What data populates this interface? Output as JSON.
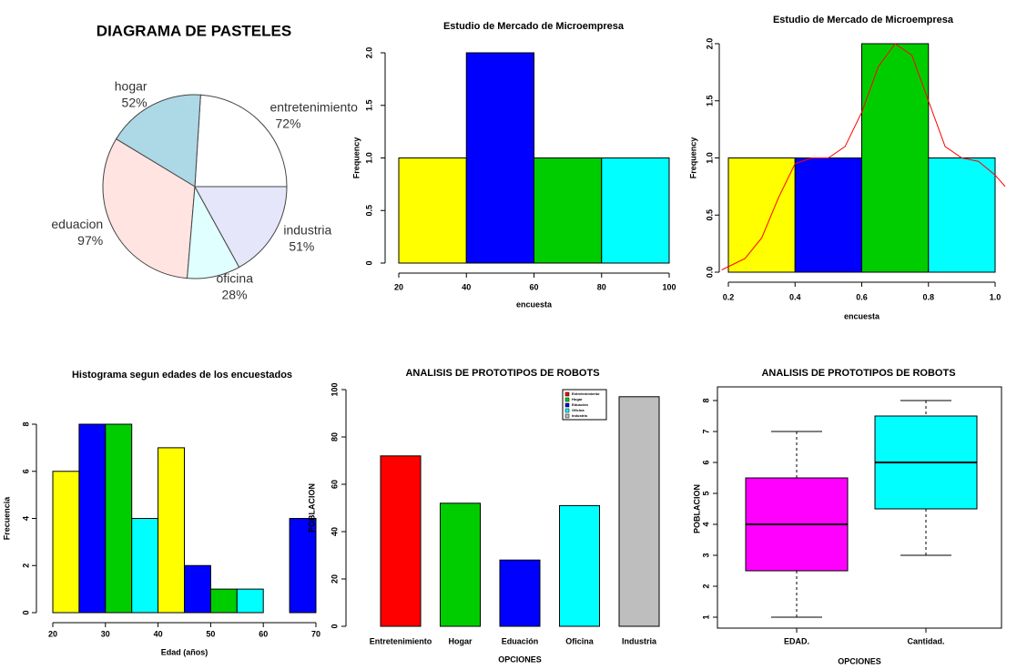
{
  "chart_data": [
    {
      "type": "pie",
      "title": "DIAGRAMA DE PASTELES",
      "categories": [
        "entretenimiento",
        "hogar",
        "eduacion",
        "oficina",
        "industria"
      ],
      "values": [
        72,
        52,
        97,
        28,
        51
      ],
      "value_labels": [
        "72%",
        "52%",
        "97%",
        "28%",
        "51%"
      ],
      "colors": [
        "#ffffff",
        "#add8e6",
        "#ffe4e1",
        "#e0ffff",
        "#e6e6fa"
      ]
    },
    {
      "type": "histogram",
      "title": "Estudio de Mercado de Microempresa",
      "xlabel": "encuesta",
      "ylabel": "Frequency",
      "bins": [
        20,
        40,
        60,
        80,
        100
      ],
      "values": [
        1,
        2,
        1,
        1
      ],
      "colors": [
        "#ffff00",
        "#0000ff",
        "#00cd00",
        "#00ffff"
      ],
      "xlim": [
        20,
        100
      ],
      "xticks": [
        20,
        40,
        60,
        80,
        100
      ],
      "ylim": [
        0,
        2
      ],
      "yticks": [
        0,
        0.5,
        {
          "value": 1,
          "label": "1.0"
        },
        1.5,
        {
          "value": 2,
          "label": "2.0"
        }
      ]
    },
    {
      "type": "histogram",
      "title": "Estudio de Mercado de Microempresa",
      "xlabel": "encuesta",
      "ylabel": "Frequency",
      "bins": [
        0.2,
        0.4,
        0.6,
        0.8,
        1.0
      ],
      "values": [
        1,
        1,
        2,
        1
      ],
      "colors": [
        "#ffff00",
        "#0000ff",
        "#00cd00",
        "#00ffff"
      ],
      "density": {
        "color": "#ff0000",
        "x": [
          0.18,
          0.25,
          0.3,
          0.35,
          0.4,
          0.45,
          0.5,
          0.55,
          0.6,
          0.65,
          0.7,
          0.75,
          0.8,
          0.85,
          0.9,
          0.95,
          1.0,
          1.03
        ],
        "y": [
          0.02,
          0.12,
          0.3,
          0.65,
          0.95,
          1.0,
          1.0,
          1.1,
          1.4,
          1.8,
          2.0,
          1.9,
          1.5,
          1.1,
          1.0,
          0.97,
          0.85,
          0.75
        ]
      },
      "xlim": [
        0.2,
        1.0
      ],
      "xticks": [
        0.2,
        0.4,
        0.6,
        0.8,
        {
          "value": 1,
          "label": "1.0"
        }
      ],
      "ylim": [
        0,
        2
      ],
      "yticks": [
        {
          "value": 0,
          "label": "0.0"
        },
        0.5,
        {
          "value": 1,
          "label": "1.0"
        },
        1.5,
        {
          "value": 2,
          "label": "2.0"
        }
      ]
    },
    {
      "type": "histogram",
      "title": "Histograma segun edades de los encuestados",
      "xlabel": "Edad (años)",
      "ylabel": "Frecuencia",
      "bins": [
        20,
        25,
        30,
        35,
        40,
        45,
        50,
        55,
        60,
        65,
        70
      ],
      "values": [
        6,
        8,
        8,
        4,
        7,
        2,
        1,
        1,
        0,
        4
      ],
      "colors": [
        "#ffff00",
        "#0000ff",
        "#00cd00",
        "#00ffff",
        "#ffff00",
        "#0000ff",
        "#00cd00",
        "#00ffff",
        "#ffff00",
        "#0000ff"
      ],
      "xlim": [
        20,
        70
      ],
      "xticks": [
        20,
        30,
        40,
        50,
        60,
        70
      ],
      "ylim": [
        0,
        8
      ],
      "yticks": [
        0,
        2,
        4,
        6,
        8
      ]
    },
    {
      "type": "bar",
      "title": "ANALISIS DE PROTOTIPOS DE ROBOTS",
      "xlabel": "OPCIONES",
      "ylabel": "POBLACION",
      "categories": [
        "Entretenimiento",
        "Hogar",
        "Eduación",
        "Oficina",
        "Industria"
      ],
      "values": [
        72,
        52,
        28,
        51,
        97
      ],
      "colors": [
        "#ff0000",
        "#00cd00",
        "#0000ff",
        "#00ffff",
        "#bebebe"
      ],
      "ylim": [
        0,
        100
      ],
      "yticks": [
        0,
        20,
        40,
        60,
        80,
        100
      ],
      "legend": "top-right"
    },
    {
      "type": "box",
      "title": "ANALISIS DE PROTOTIPOS DE ROBOTS",
      "xlabel": "OPCIONES",
      "ylabel": "POBLACION",
      "categories": [
        "EDAD.",
        "Cantidad."
      ],
      "boxes": [
        {
          "min": 1,
          "q1": 2.5,
          "median": 4,
          "q3": 5.5,
          "max": 7
        },
        {
          "min": 3,
          "q1": 4.5,
          "median": 6,
          "q3": 7.5,
          "max": 8
        }
      ],
      "colors": [
        "#ff00ff",
        "#00ffff"
      ],
      "ylim": [
        1,
        8
      ],
      "yticks": [
        1,
        2,
        3,
        4,
        5,
        6,
        7,
        8
      ]
    }
  ]
}
